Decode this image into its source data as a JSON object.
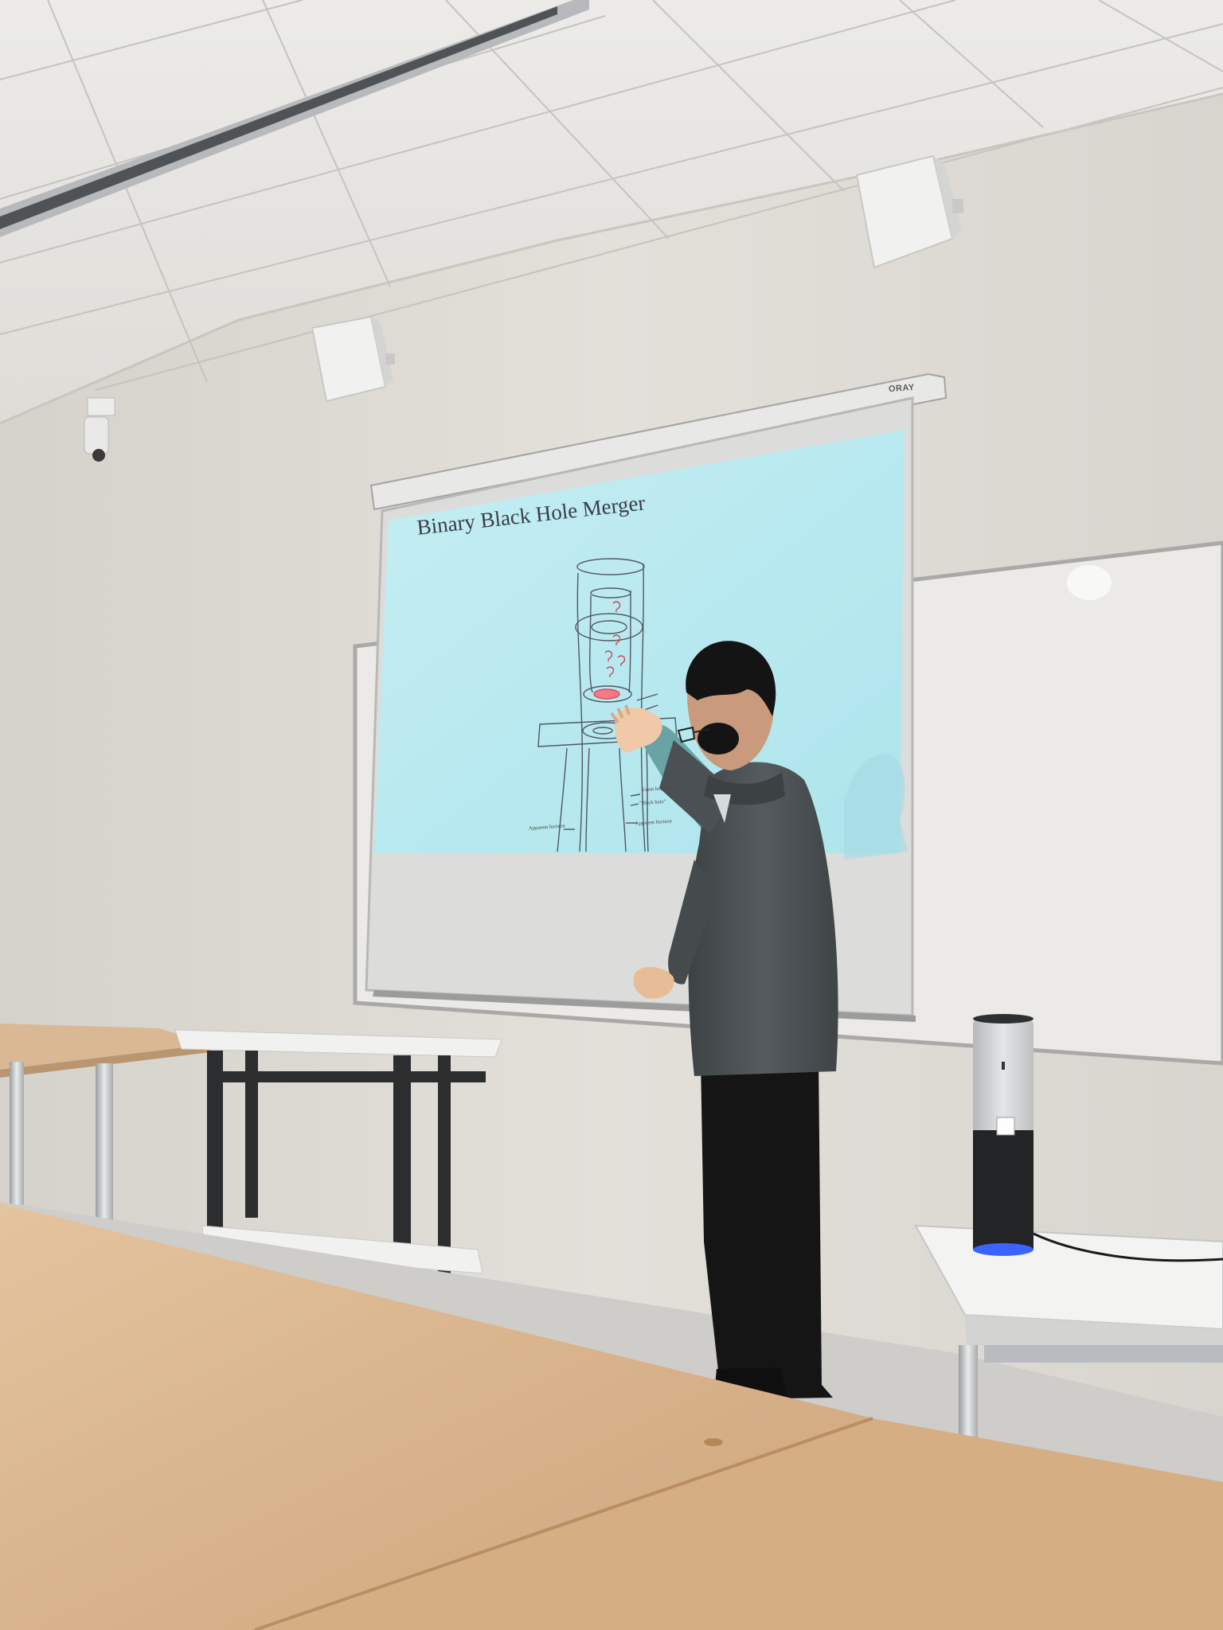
{
  "slide": {
    "title": "Binary Black Hole Merger",
    "labels": [
      "Event horizon",
      "\"Black hole\"",
      "Apparent horizon",
      "Apparent horizon"
    ]
  },
  "screen": {
    "brand": "ORAY"
  },
  "colors": {
    "slide_bg": "#b9eaf0",
    "wall": "#dedbd5",
    "table": "#d9b48a",
    "jacket": "#4a4f52",
    "speaker_led": "#3b63ff"
  }
}
